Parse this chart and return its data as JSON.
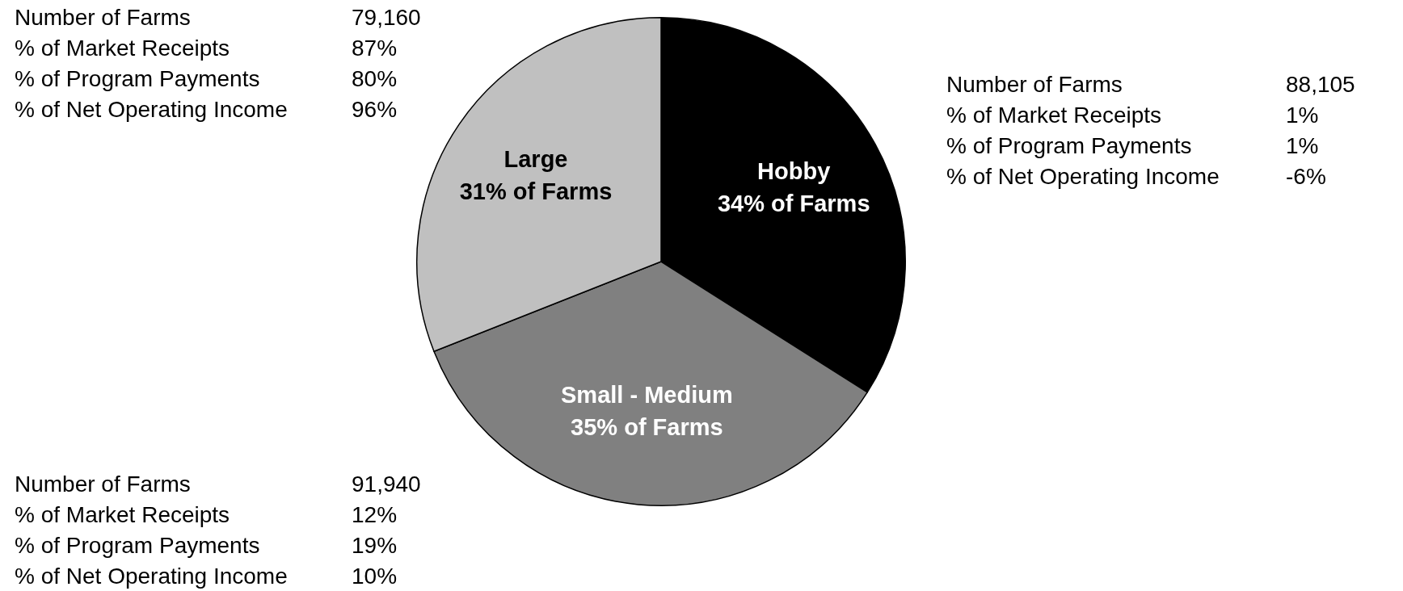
{
  "chart_data": {
    "type": "pie",
    "categories": [
      "Hobby",
      "Small - Medium",
      "Large"
    ],
    "values": [
      34,
      35,
      31
    ],
    "colors": [
      "#000000",
      "#808080",
      "#c0c0c0"
    ],
    "value_labels": [
      "34% of Farms",
      "35% of Farms",
      "31% of Farms"
    ],
    "annotations": [
      "Number of Farms",
      "79,160",
      "% of Market Receipts",
      "87%",
      "% of Program Payments",
      "80%",
      "% of Net Operating Income",
      "96%",
      "Number of Farms",
      "88,105",
      "% of Market Receipts",
      "1%",
      "% of Program Payments",
      "1%",
      "% of Net Operating Income",
      "-6%",
      "Number of Farms",
      "91,940",
      "% of Market Receipts",
      "12%",
      "% of Program Payments",
      "19%",
      "% of Net Operating Income",
      "10%"
    ]
  }
}
